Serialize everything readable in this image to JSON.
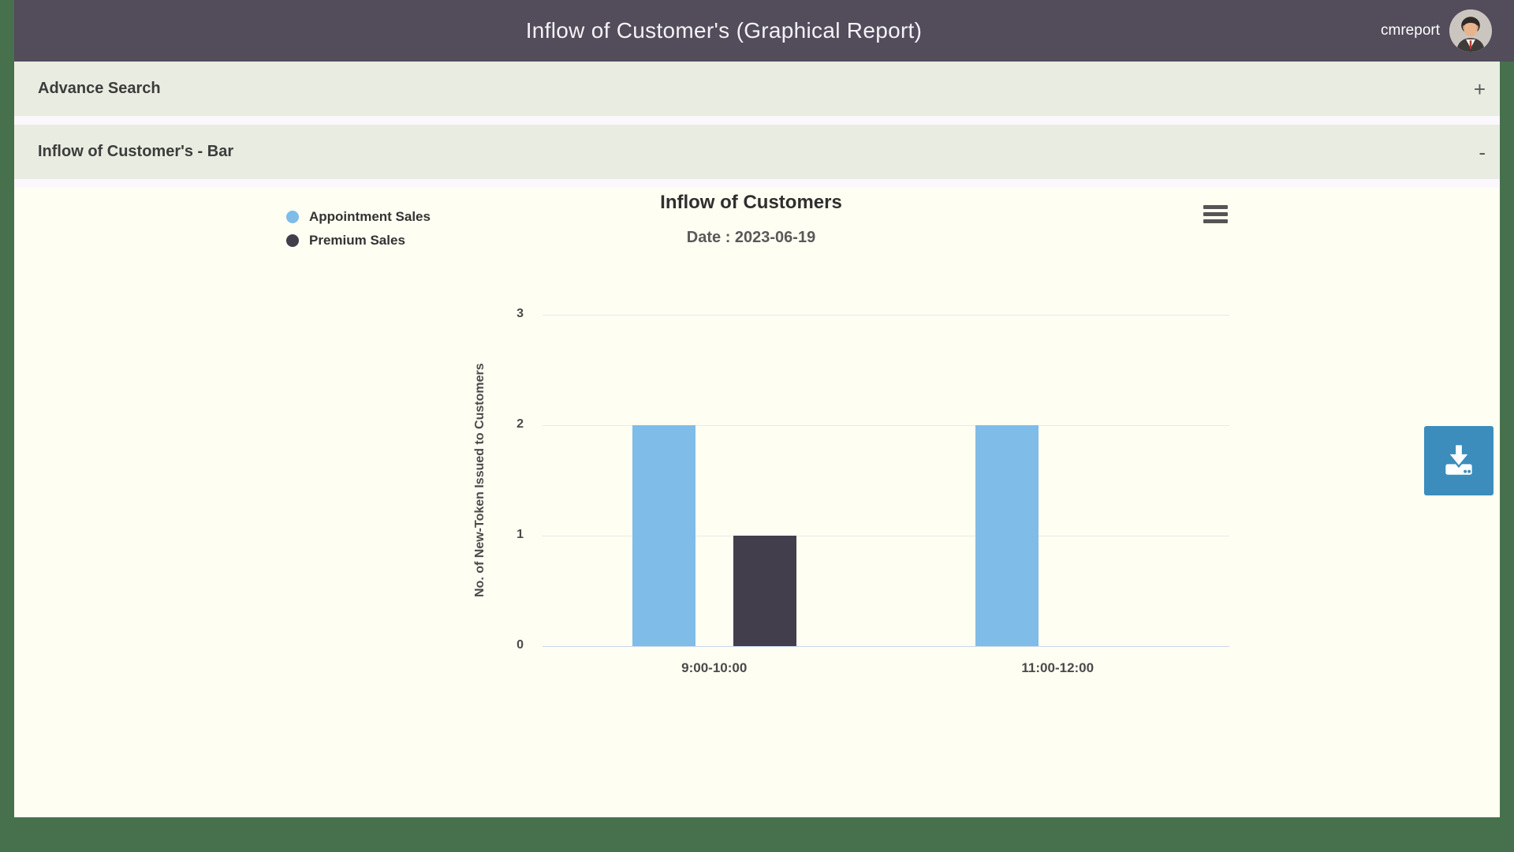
{
  "header": {
    "title": "Inflow of Customer's (Graphical Report)",
    "username": "cmreport"
  },
  "panels": {
    "advance_search": {
      "title": "Advance Search",
      "toggle_label": "+"
    },
    "bar_panel": {
      "title": "Inflow of Customer's - Bar",
      "toggle_label": "-"
    }
  },
  "chart_data": {
    "type": "bar",
    "title": "Inflow of Customers",
    "subtitle": "Date : 2023-06-19",
    "categories": [
      "9:00-10:00",
      "11:00-12:00"
    ],
    "series": [
      {
        "name": "Appointment Sales",
        "color": "#7fbce8",
        "values": [
          2,
          2
        ]
      },
      {
        "name": "Premium Sales",
        "color": "#423e4c",
        "values": [
          1,
          0
        ]
      }
    ],
    "xlabel": "",
    "ylabel": "No. of New-Token Issued to Customers",
    "ylim": [
      0,
      3
    ],
    "yticks": [
      0,
      1,
      2,
      3
    ],
    "grid": true,
    "legend_position": "top-left"
  },
  "icons": {
    "hamburger_menu": "chart-context-menu",
    "download": "download-arrow-tray",
    "avatar": "male-profile-avatar"
  },
  "colors": {
    "page_frame_green": "#47714d",
    "header_bg": "#524c5b",
    "panel_bar_bg": "#e9ede1",
    "chart_panel_bg": "#fffef2",
    "gap_strip_bg": "#fcf7fc",
    "download_button": "#3c8dbc",
    "grid_line": "#e9e9e9",
    "axis_line": "#ccd6eb"
  }
}
